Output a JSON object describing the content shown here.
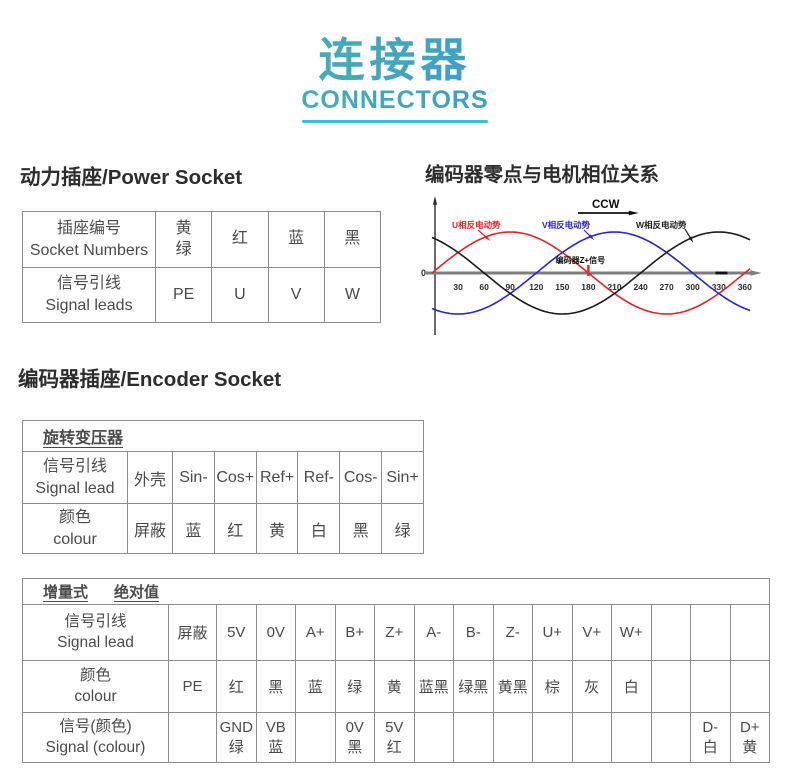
{
  "page": {
    "title_zh": "连接器",
    "title_en": "CONNECTORS"
  },
  "colors": {
    "accent_teal": "#45c6a5",
    "accent_blue": "#3d87d6",
    "underline_cyan": "#38bede",
    "table_header_blue": "#1b1be0"
  },
  "power_socket": {
    "heading": "动力插座/Power Socket",
    "rows": [
      {
        "label_zh": "插座编号",
        "label_en": "Socket Numbers",
        "cells": [
          "黄\n绿",
          "红",
          "蓝",
          "黑"
        ]
      },
      {
        "label_zh": "信号引线",
        "label_en": "Signal leads",
        "cells": [
          "PE",
          "U",
          "V",
          "W"
        ]
      }
    ]
  },
  "phase_section": {
    "heading": "编码器零点与电机相位关系",
    "chart_data": {
      "type": "line",
      "title": "编码器零点与电机相位关系",
      "x_ticks": [
        30,
        60,
        90,
        120,
        150,
        180,
        210,
        240,
        270,
        300,
        330,
        360
      ],
      "xlim": [
        0,
        360
      ],
      "ylim": [
        -1,
        1
      ],
      "origin_label": "0",
      "rotation_label": "CCW",
      "grid": false,
      "series": [
        {
          "name": "U相反电动势",
          "color": "#e62222",
          "phase_deg": 0,
          "amplitude": 1
        },
        {
          "name": "V相反电动势",
          "color": "#2525dd",
          "phase_deg": -120,
          "amplitude": 1
        },
        {
          "name": "W相反电动势",
          "color": "#1c1c1c",
          "phase_deg": 120,
          "amplitude": 1
        }
      ],
      "annotation": {
        "text": "编码器Z+信号",
        "x_deg": 180,
        "color": "#e53030"
      },
      "axis_marker_deg": 333
    }
  },
  "encoder_socket": {
    "heading": "编码器插座/Encoder Socket",
    "resolver_table": {
      "header": "旋转变压器",
      "rows": [
        {
          "label_zh": "信号引线",
          "label_en": "Signal lead",
          "cells": [
            "外壳",
            "Sin-",
            "Cos+",
            "Ref+",
            "Ref-",
            "Cos-",
            "Sin+"
          ]
        },
        {
          "label_zh": "颜色",
          "label_en": "colour",
          "cells": [
            "屏蔽",
            "蓝",
            "红",
            "黄",
            "白",
            "黑",
            "绿"
          ]
        }
      ]
    },
    "incremental_table": {
      "header_items": [
        "增量式",
        "绝对值"
      ],
      "rows": [
        {
          "label_zh": "信号引线",
          "label_en": "Signal lead",
          "cells": [
            "屏蔽",
            "5V",
            "0V",
            "A+",
            "B+",
            "Z+",
            "A-",
            "B-",
            "Z-",
            "U+",
            "V+",
            "W+",
            "",
            "",
            ""
          ]
        },
        {
          "label_zh": "颜色",
          "label_en": "colour",
          "cells": [
            "PE",
            "红",
            "黑",
            "蓝",
            "绿",
            "黄",
            "蓝黑",
            "绿黑",
            "黄黑",
            "棕",
            "灰",
            "白",
            "",
            "",
            ""
          ]
        },
        {
          "label_zh": "信号(颜色)",
          "label_en": "Signal (colour)",
          "cells": [
            "",
            "GND\n绿",
            "VB\n蓝",
            "",
            "0V\n黑",
            "5V\n红",
            "",
            "",
            "",
            "",
            "",
            "",
            "",
            "D-\n白",
            "D+\n黄"
          ]
        }
      ]
    }
  }
}
